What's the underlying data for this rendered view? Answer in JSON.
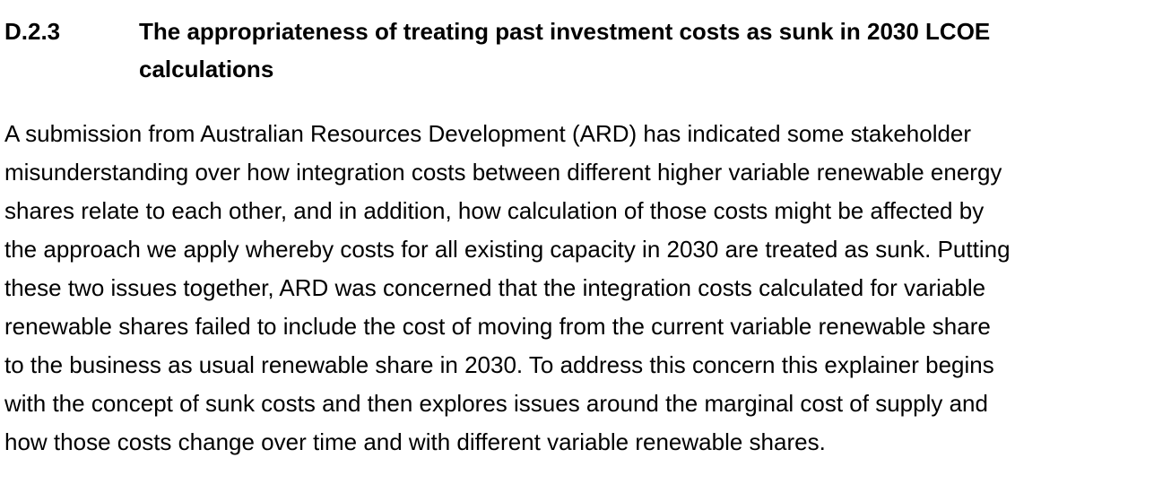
{
  "header": {
    "number": "D.2.3",
    "title_lines": [
      "The appropriateness of treating past investment costs as sunk in 2030 LCOE",
      "calculations"
    ]
  },
  "paragraph": {
    "lines": [
      "A submission from Australian Resources Development (ARD) has indicated some stakeholder",
      "misunderstanding over how integration costs between different higher variable renewable energy",
      "shares relate to each other, and in addition, how calculation of those costs might be affected by",
      "the approach we apply whereby costs for all existing capacity in 2030 are treated as sunk. Putting",
      "these two issues together, ARD was concerned that the integration costs calculated for variable",
      "renewable shares failed to include the cost of moving from the current variable renewable share",
      "to the business as usual renewable share in 2030. To address this concern this explainer begins",
      "with the concept of sunk costs and then explores issues around the marginal cost of supply and",
      "how those costs change over time and with different variable renewable shares."
    ]
  }
}
